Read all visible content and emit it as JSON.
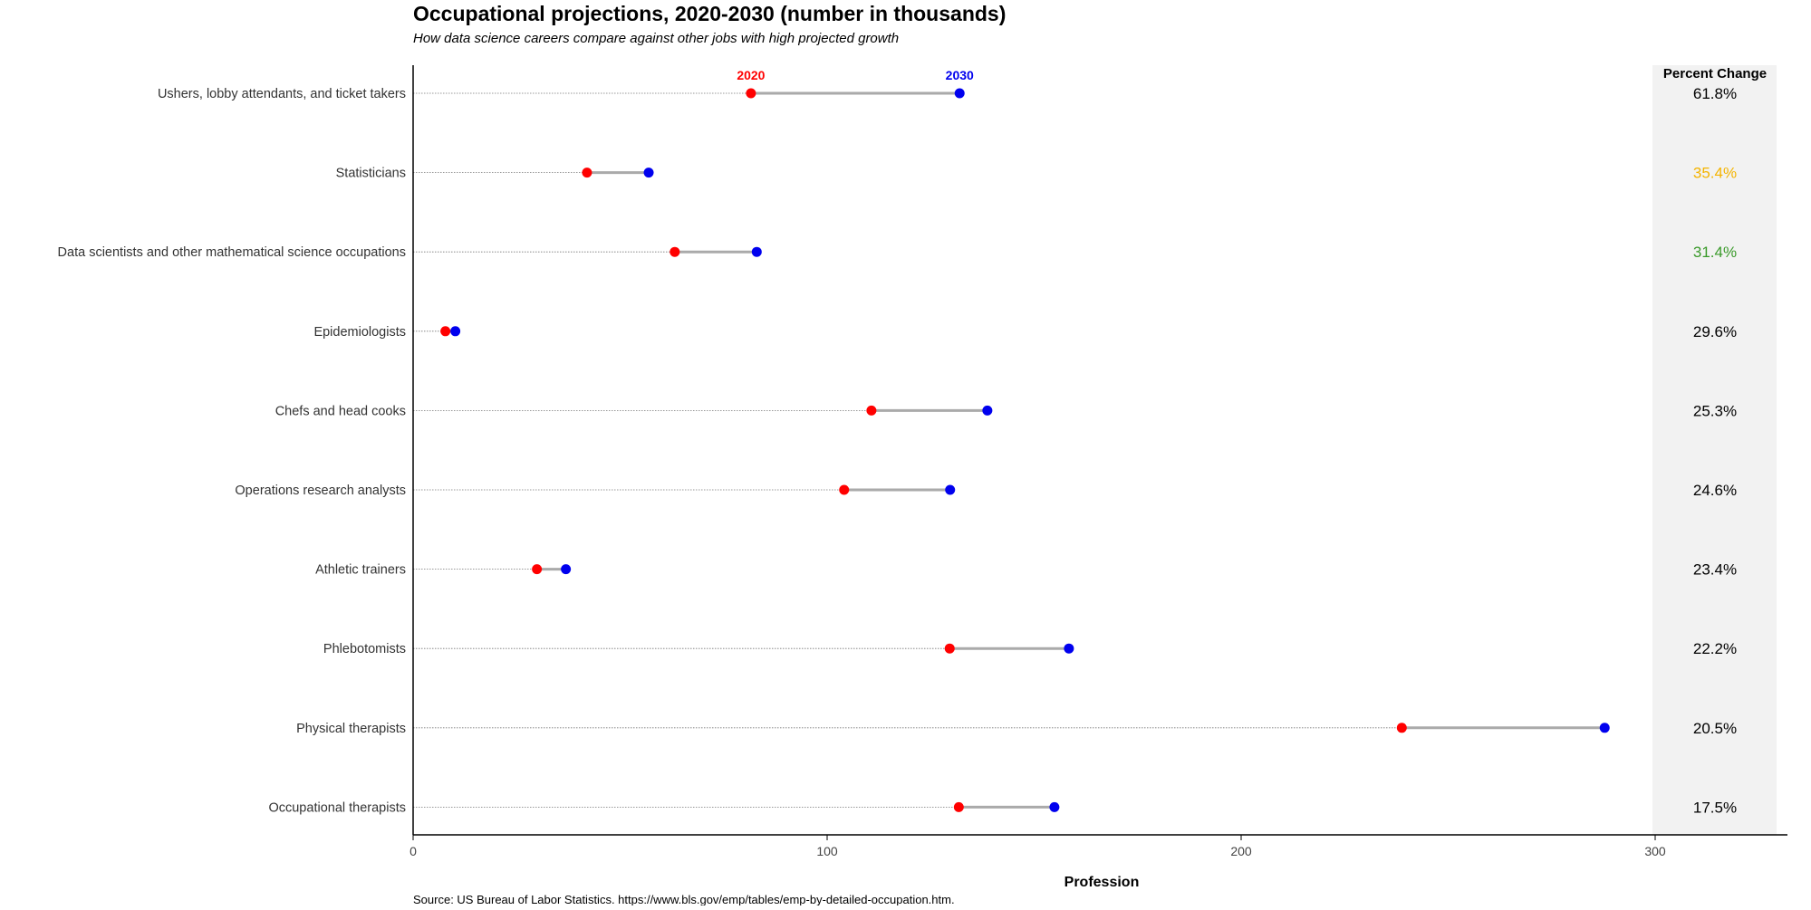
{
  "chart_data": {
    "type": "dumbbell",
    "title": "Occupational projections, 2020-2030 (number in thousands)",
    "subtitle": "How data science careers compare against other jobs with high projected growth",
    "xlabel": "Profession",
    "ylabel": "",
    "xlim": [
      0,
      332
    ],
    "xticks": [
      0,
      100,
      200,
      300
    ],
    "grid": false,
    "legend_labels": {
      "start": "2020",
      "end": "2030"
    },
    "percent_change_header": "Percent Change",
    "source": "Source: US Bureau of Labor Statistics. https://www.bls.gov/emp/tables/emp-by-detailed-occupation.htm.",
    "colors": {
      "start": "#ff0000",
      "end": "#0000ee",
      "connector": "#aaaaaa",
      "panel": "#f2f2f2",
      "highlight_statisticians": "#f4b400",
      "highlight_data_science": "#3a9a2a",
      "default_pct": "#000000"
    },
    "rows": [
      {
        "profession": "Ushers, lobby attendants, and ticket takers",
        "y2020": 81.6,
        "y2030": 132.0,
        "pct_change": "61.8%",
        "pct_color": "#000000"
      },
      {
        "profession": "Statisticians",
        "y2020": 42.0,
        "y2030": 56.9,
        "pct_change": "35.4%",
        "pct_color": "#f4b400"
      },
      {
        "profession": "Data scientists and other mathematical science occupations",
        "y2020": 63.2,
        "y2030": 83.0,
        "pct_change": "31.4%",
        "pct_color": "#3a9a2a"
      },
      {
        "profession": "Epidemiologists",
        "y2020": 7.8,
        "y2030": 10.2,
        "pct_change": "29.6%",
        "pct_color": "#000000"
      },
      {
        "profession": "Chefs and head cooks",
        "y2020": 110.7,
        "y2030": 138.7,
        "pct_change": "25.3%",
        "pct_color": "#000000"
      },
      {
        "profession": "Operations research analysts",
        "y2020": 104.1,
        "y2030": 129.7,
        "pct_change": "24.6%",
        "pct_color": "#000000"
      },
      {
        "profession": "Athletic trainers",
        "y2020": 29.9,
        "y2030": 36.9,
        "pct_change": "23.4%",
        "pct_color": "#000000"
      },
      {
        "profession": "Phlebotomists",
        "y2020": 129.6,
        "y2030": 158.4,
        "pct_change": "22.2%",
        "pct_color": "#000000"
      },
      {
        "profession": "Physical therapists",
        "y2020": 238.8,
        "y2030": 287.8,
        "pct_change": "20.5%",
        "pct_color": "#000000"
      },
      {
        "profession": "Occupational therapists",
        "y2020": 131.8,
        "y2030": 154.9,
        "pct_change": "17.5%",
        "pct_color": "#000000"
      }
    ]
  }
}
